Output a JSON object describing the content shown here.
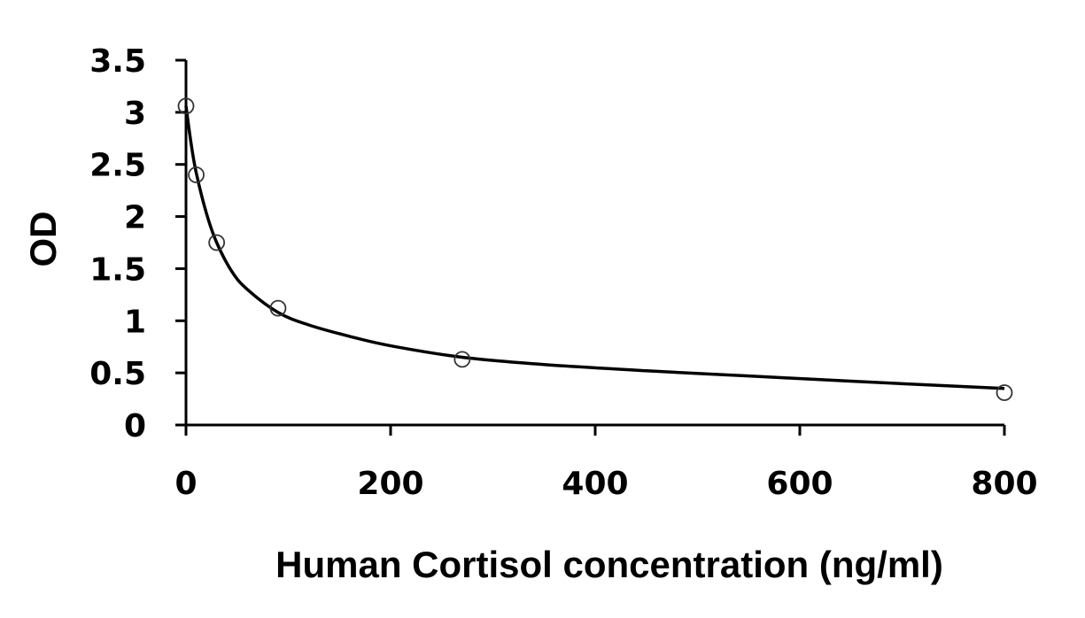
{
  "chart_data": {
    "type": "scatter",
    "title": "",
    "xlabel": "Human Cortisol concentration (ng/ml)",
    "ylabel": "OD",
    "xlim": [
      0,
      800
    ],
    "ylim": [
      0,
      3.5
    ],
    "x_ticks": [
      0,
      200,
      400,
      600,
      800
    ],
    "y_ticks": [
      0,
      0.5,
      1,
      1.5,
      2,
      2.5,
      3,
      3.5
    ],
    "x_tick_labels": [
      "0",
      "200",
      "400",
      "600",
      "800"
    ],
    "y_tick_labels": [
      "0",
      "0.5",
      "1",
      "1.5",
      "2",
      "2.5",
      "3",
      "3.5"
    ],
    "grid": false,
    "legend": "none",
    "marker": "open-circle",
    "series": [
      {
        "points": [
          {
            "x": 0,
            "y": 3.06
          },
          {
            "x": 10,
            "y": 2.4
          },
          {
            "x": 30,
            "y": 1.75
          },
          {
            "x": 90,
            "y": 1.12
          },
          {
            "x": 270,
            "y": 0.63
          },
          {
            "x": 800,
            "y": 0.31
          }
        ]
      }
    ],
    "fit_curve": {
      "points": [
        [
          0,
          3.06
        ],
        [
          5,
          2.7
        ],
        [
          10,
          2.42
        ],
        [
          20,
          2.03
        ],
        [
          30,
          1.75
        ],
        [
          45,
          1.47
        ],
        [
          60,
          1.3
        ],
        [
          90,
          1.08
        ],
        [
          120,
          0.96
        ],
        [
          160,
          0.85
        ],
        [
          200,
          0.76
        ],
        [
          270,
          0.65
        ],
        [
          350,
          0.58
        ],
        [
          450,
          0.52
        ],
        [
          550,
          0.47
        ],
        [
          650,
          0.42
        ],
        [
          800,
          0.35
        ]
      ]
    },
    "colors": {
      "axis": "#000000",
      "curve": "#000000",
      "marker_stroke": "#333333",
      "background": "#ffffff"
    }
  }
}
